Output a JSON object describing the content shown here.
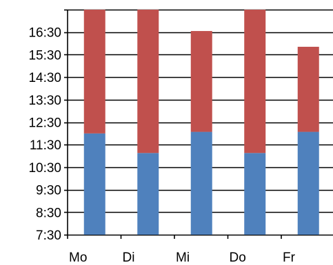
{
  "chart_data": {
    "type": "bar",
    "stacked": true,
    "categories": [
      "Mo",
      "Di",
      "Mi",
      "Do",
      "Fr"
    ],
    "y_ticks": [
      "7:30",
      "8:30",
      "9:30",
      "10:30",
      "11:30",
      "12:30",
      "13:30",
      "14:30",
      "15:30",
      "16:30"
    ],
    "y_tick_values": [
      7.5,
      8.5,
      9.5,
      10.5,
      11.5,
      12.5,
      13.5,
      14.5,
      15.5,
      16.5
    ],
    "ylim": [
      7.5,
      17.5
    ],
    "bar_start": [
      7.5,
      7.5,
      7.5,
      7.5,
      7.5
    ],
    "bar_split": [
      12.0,
      11.13,
      12.07,
      11.13,
      12.07
    ],
    "bar_end": [
      17.5,
      17.5,
      16.55,
      17.5,
      15.85
    ],
    "series": [
      {
        "color": "#4f81bd"
      },
      {
        "color": "#c0504d"
      }
    ],
    "grid": "horizontal",
    "legend": "none"
  }
}
